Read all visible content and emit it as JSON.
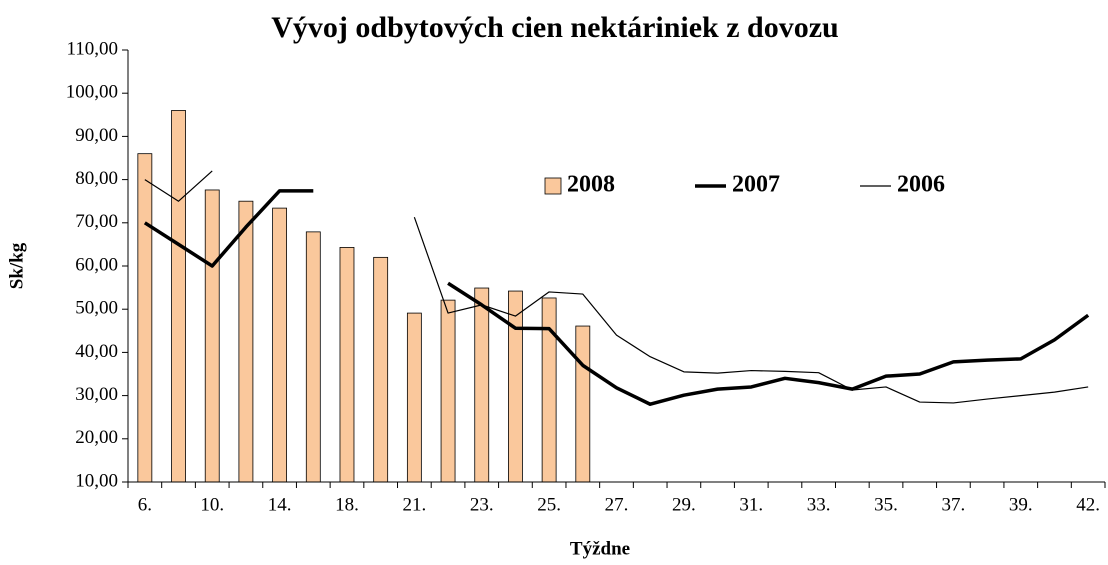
{
  "chart_data": {
    "type": "bar_line",
    "title": "Vývoj odbytových cien nektáriniek z dovozu",
    "xlabel": "Týždne",
    "ylabel": "Sk/kg",
    "categories": [
      "6.",
      null,
      "10.",
      null,
      "14.",
      null,
      "18.",
      null,
      "21.",
      null,
      "23.",
      null,
      "25.",
      null,
      "27.",
      null,
      "29.",
      null,
      "31.",
      null,
      "33.",
      null,
      "35.",
      null,
      "37.",
      null,
      "39.",
      null,
      "42."
    ],
    "ylim": [
      10,
      110
    ],
    "yticks": [
      {
        "value": 10,
        "label": "10,00"
      },
      {
        "value": 20,
        "label": "20,00"
      },
      {
        "value": 30,
        "label": "30,00"
      },
      {
        "value": 40,
        "label": "40,00"
      },
      {
        "value": 50,
        "label": "50,00"
      },
      {
        "value": 60,
        "label": "60,00"
      },
      {
        "value": 70,
        "label": "70,00"
      },
      {
        "value": 80,
        "label": "80,00"
      },
      {
        "value": 90,
        "label": "90,00"
      },
      {
        "value": 100,
        "label": "100,00"
      },
      {
        "value": 110,
        "label": "110,00"
      }
    ],
    "legend": "upper right",
    "series": [
      {
        "name": "2008",
        "kind": "bar",
        "color": "#fac89c",
        "values": [
          86,
          96,
          77.6,
          75,
          73.4,
          67.9,
          64.3,
          62,
          49.1,
          52.1,
          54.9,
          54.2,
          52.6,
          46.1,
          null,
          null,
          null,
          null,
          null,
          null,
          null,
          null,
          null,
          null,
          null,
          null,
          null,
          null,
          null
        ]
      },
      {
        "name": "2007",
        "kind": "line",
        "color": "#000000",
        "width": 3.5,
        "values": [
          70,
          65,
          60,
          69,
          77.4,
          77.4,
          null,
          null,
          null,
          56,
          51,
          45.6,
          45.5,
          37,
          31.8,
          28,
          30.1,
          31.5,
          32,
          34,
          33,
          31.5,
          34.5,
          35,
          37.8,
          38.2,
          38.5,
          42.9,
          48.6
        ]
      },
      {
        "name": "2006",
        "kind": "line",
        "color": "#000000",
        "width": 1.2,
        "values": [
          80,
          75,
          82,
          null,
          null,
          null,
          null,
          null,
          71.3,
          49.1,
          51,
          48.4,
          54,
          53.5,
          44,
          39,
          35.5,
          35.2,
          35.8,
          35.6,
          35.3,
          31.3,
          32,
          28.5,
          28.3,
          29.2,
          30,
          30.8,
          32
        ]
      }
    ]
  }
}
